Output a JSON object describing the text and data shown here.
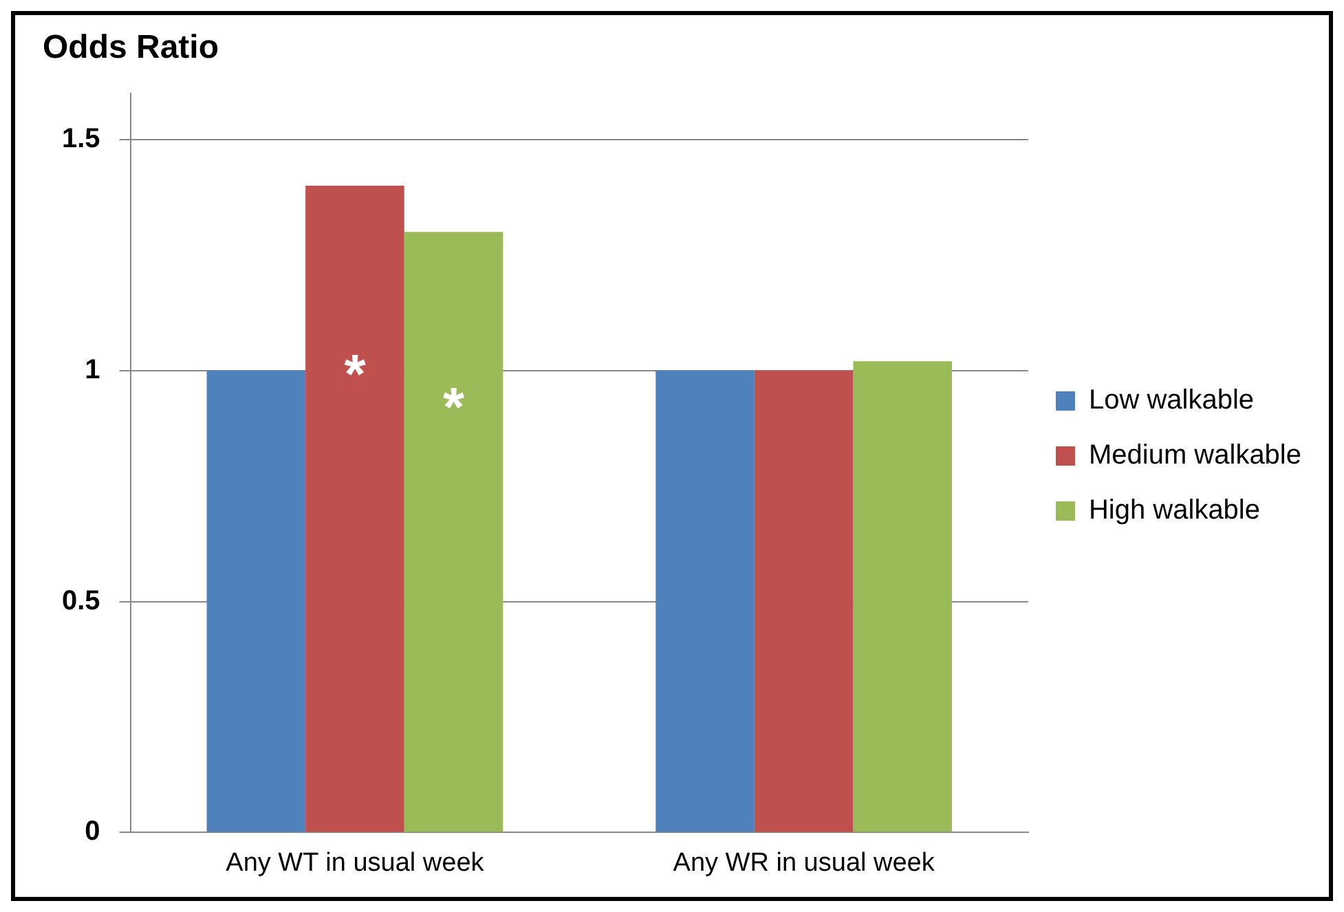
{
  "chart_data": {
    "type": "bar",
    "title": "Odds Ratio",
    "categories": [
      "Any WT in usual week",
      "Any WR in usual week"
    ],
    "series": [
      {
        "name": "Low walkable",
        "color": "#4f81bd",
        "values": [
          1.0,
          1.0
        ]
      },
      {
        "name": "Medium walkable",
        "color": "#c0504d",
        "values": [
          1.4,
          1.0
        ],
        "value_labels": [
          "*",
          null
        ]
      },
      {
        "name": "High walkable",
        "color": "#9bbb59",
        "values": [
          1.3,
          1.02
        ],
        "value_labels": [
          "*",
          null
        ]
      }
    ],
    "ylim": [
      0,
      1.6
    ],
    "yticks": [
      0,
      0.5,
      1,
      1.5
    ],
    "grid": "y",
    "legend": "right"
  }
}
